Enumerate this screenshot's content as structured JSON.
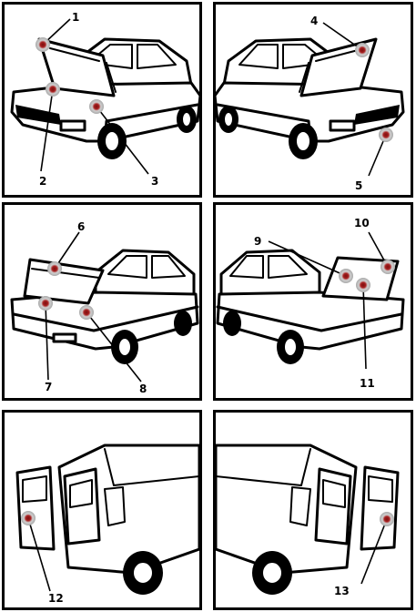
{
  "panels": [
    {
      "id": "front-hood-left",
      "markers": [
        {
          "label": "1"
        },
        {
          "label": "2"
        },
        {
          "label": "3"
        }
      ]
    },
    {
      "id": "rear-hood-right",
      "markers": [
        {
          "label": "4"
        },
        {
          "label": "5"
        }
      ]
    },
    {
      "id": "trunk-left",
      "markers": [
        {
          "label": "6"
        },
        {
          "label": "7"
        },
        {
          "label": "8"
        }
      ]
    },
    {
      "id": "trunk-right",
      "markers": [
        {
          "label": "9"
        },
        {
          "label": "10"
        },
        {
          "label": "11"
        }
      ]
    },
    {
      "id": "doors-left",
      "markers": [
        {
          "label": "12"
        }
      ]
    },
    {
      "id": "doors-right",
      "markers": [
        {
          "label": "13"
        }
      ]
    }
  ],
  "colors": {
    "marker_outer": "#c8c8c8",
    "marker_inner": "#9b1b1b",
    "line": "#000000"
  }
}
